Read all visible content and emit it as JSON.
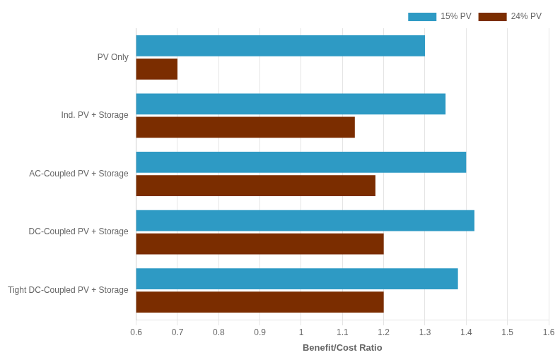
{
  "chart_data": {
    "type": "bar",
    "orientation": "horizontal",
    "categories": [
      "PV Only",
      "Ind. PV + Storage",
      "AC-Coupled PV + Storage",
      "DC-Coupled PV + Storage",
      "Tight DC-Coupled PV + Storage"
    ],
    "series": [
      {
        "name": "15% PV",
        "color": "#2E9AC4",
        "values": [
          1.3,
          1.35,
          1.4,
          1.42,
          1.38
        ]
      },
      {
        "name": "24% PV",
        "color": "#7B2D00",
        "values": [
          0.7,
          1.13,
          1.18,
          1.2,
          1.2
        ]
      }
    ],
    "xlabel": "Benefit/Cost Ratio",
    "xlim": [
      0.6,
      1.6
    ],
    "xticks": [
      0.6,
      0.7,
      0.8,
      0.9,
      1,
      1.1,
      1.2,
      1.3,
      1.4,
      1.5,
      1.6
    ],
    "grid": true,
    "legend": "upper right"
  }
}
